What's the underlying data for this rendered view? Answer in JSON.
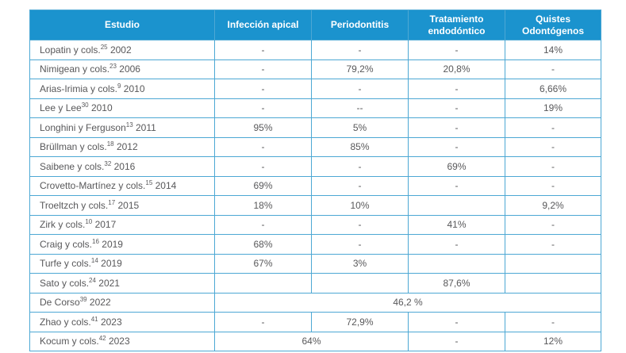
{
  "colors": {
    "header_bg": "#1B93CE",
    "border_color": "#4DA8D4",
    "header_text": "#FFFFFF",
    "cell_text": "#58585A",
    "page_bg": "#FFFFFF"
  },
  "table": {
    "headers": [
      "Estudio",
      "Infección apical",
      "Periodontitis",
      "Tratamiento endodóntico",
      "Quistes Odontógenos"
    ],
    "rows": [
      {
        "study": {
          "name": "Lopatin y cols.",
          "ref": "25",
          "year": "2002"
        },
        "cells": [
          {
            "text": "-"
          },
          {
            "text": "-"
          },
          {
            "text": "-"
          },
          {
            "text": "14%"
          }
        ]
      },
      {
        "study": {
          "name": "Nimigean y cols.",
          "ref": "23",
          "year": "2006"
        },
        "cells": [
          {
            "text": "-"
          },
          {
            "text": "79,2%"
          },
          {
            "text": "20,8%"
          },
          {
            "text": "-"
          }
        ]
      },
      {
        "study": {
          "name": "Arias-Irimia y cols.",
          "ref": "9",
          "year": "2010"
        },
        "cells": [
          {
            "text": "-"
          },
          {
            "text": "-"
          },
          {
            "text": "-"
          },
          {
            "text": "6,66%"
          }
        ]
      },
      {
        "study": {
          "name": "Lee y Lee",
          "ref": "30",
          "year": "2010"
        },
        "cells": [
          {
            "text": "-"
          },
          {
            "text": "--"
          },
          {
            "text": "-"
          },
          {
            "text": "19%"
          }
        ]
      },
      {
        "study": {
          "name": "Longhini y Ferguson",
          "ref": "13",
          "year": "2011"
        },
        "cells": [
          {
            "text": "95%"
          },
          {
            "text": "5%"
          },
          {
            "text": "-"
          },
          {
            "text": "-"
          }
        ]
      },
      {
        "study": {
          "name": "Brüllman y cols.",
          "ref": "18",
          "year": "2012"
        },
        "cells": [
          {
            "text": "-"
          },
          {
            "text": "85%"
          },
          {
            "text": "-"
          },
          {
            "text": "-"
          }
        ]
      },
      {
        "study": {
          "name": "Saibene y cols.",
          "ref": "32",
          "year": "2016"
        },
        "cells": [
          {
            "text": "-"
          },
          {
            "text": "-"
          },
          {
            "text": "69%"
          },
          {
            "text": "-"
          }
        ]
      },
      {
        "study": {
          "name": "Crovetto-Martínez y cols.",
          "ref": "15",
          "year": "2014"
        },
        "cells": [
          {
            "text": "69%"
          },
          {
            "text": "-"
          },
          {
            "text": "-"
          },
          {
            "text": "-"
          }
        ]
      },
      {
        "study": {
          "name": "Troeltzch y cols.",
          "ref": "17",
          "year": "2015"
        },
        "cells": [
          {
            "text": "18%"
          },
          {
            "text": "10%"
          },
          {
            "text": ""
          },
          {
            "text": "9,2%"
          }
        ]
      },
      {
        "study": {
          "name": "Zirk y cols.",
          "ref": "10",
          "year": "2017"
        },
        "cells": [
          {
            "text": "-"
          },
          {
            "text": "-"
          },
          {
            "text": "41%"
          },
          {
            "text": "-"
          }
        ]
      },
      {
        "study": {
          "name": "Craig y cols.",
          "ref": "16",
          "year": "2019"
        },
        "cells": [
          {
            "text": "68%"
          },
          {
            "text": "-"
          },
          {
            "text": "-"
          },
          {
            "text": "-"
          }
        ]
      },
      {
        "study": {
          "name": "Turfe y cols.",
          "ref": "14",
          "year": "2019"
        },
        "cells": [
          {
            "text": "67%"
          },
          {
            "text": "3%"
          },
          {
            "text": ""
          },
          {
            "text": ""
          }
        ]
      },
      {
        "study": {
          "name": "Sato y cols.",
          "ref": "24",
          "year": "2021"
        },
        "cells": [
          {
            "text": ""
          },
          {
            "text": ""
          },
          {
            "text": "87,6%"
          },
          {
            "text": ""
          }
        ]
      },
      {
        "study": {
          "name": "De Corso",
          "ref": "39",
          "year": "2022"
        },
        "cells": [
          {
            "text": "46,2 %",
            "colspan": 4
          }
        ]
      },
      {
        "study": {
          "name": "Zhao y cols.",
          "ref": "41",
          "year": "2023"
        },
        "cells": [
          {
            "text": "-"
          },
          {
            "text": "72,9%"
          },
          {
            "text": "-"
          },
          {
            "text": "-"
          }
        ]
      },
      {
        "study": {
          "name": "Kocum y cols.",
          "ref": "42",
          "year": "2023"
        },
        "cells": [
          {
            "text": "64%",
            "colspan": 2
          },
          {
            "text": "-"
          },
          {
            "text": "12%"
          }
        ]
      }
    ]
  }
}
